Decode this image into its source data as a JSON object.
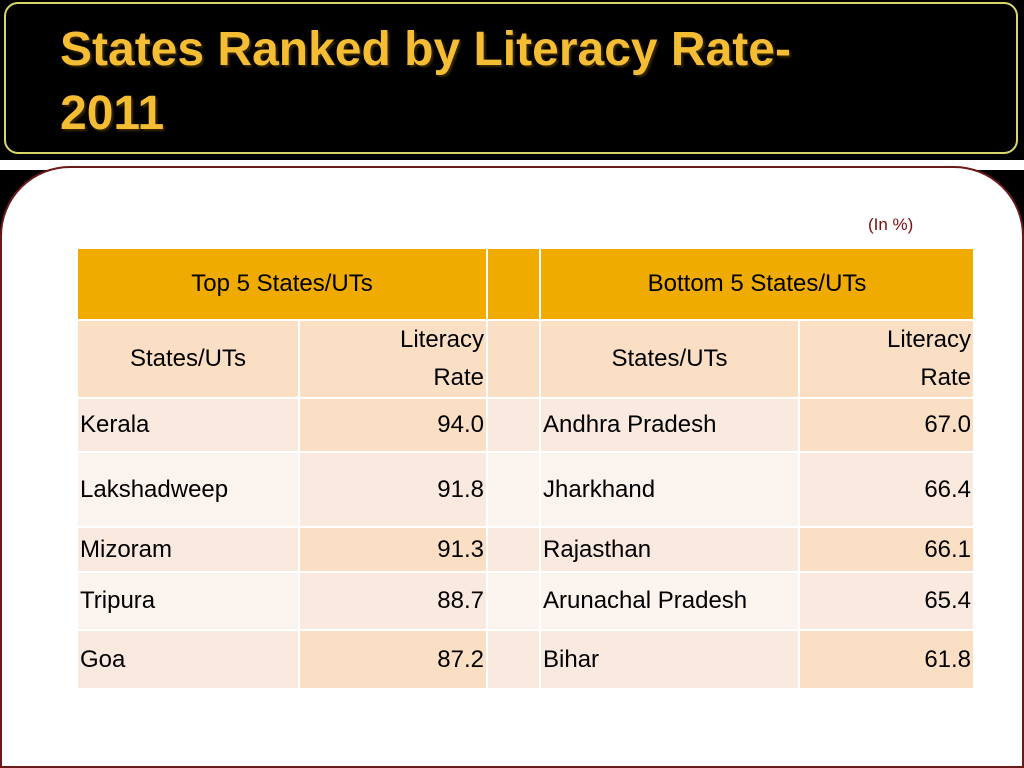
{
  "title": {
    "line1": "States Ranked by Literacy Rate-",
    "line2": "2011"
  },
  "unit_note": "(In %)",
  "table": {
    "group_headers": {
      "top": "Top 5 States/UTs",
      "bottom": "Bottom 5 States/UTs"
    },
    "sub_headers": {
      "name": "States/UTs",
      "rate_line1": "Literacy",
      "rate_line2": "Rate"
    },
    "rows": [
      {
        "top_name": "Kerala",
        "top_rate": "94.0",
        "bottom_name": "Andhra Pradesh",
        "bottom_rate": "67.0"
      },
      {
        "top_name": "Lakshadweep",
        "top_rate": "91.8",
        "bottom_name": "Jharkhand",
        "bottom_rate": "66.4"
      },
      {
        "top_name": "Mizoram",
        "top_rate": "91.3",
        "bottom_name": "Rajasthan",
        "bottom_rate": "66.1"
      },
      {
        "top_name": "Tripura",
        "top_rate": "88.7",
        "bottom_name": "Arunachal Pradesh",
        "bottom_rate": "65.4"
      },
      {
        "top_name": "Goa",
        "top_rate": "87.2",
        "bottom_name": "Bihar",
        "bottom_rate": "61.8"
      }
    ]
  },
  "colors": {
    "title_text": "#f4bd33",
    "header_fill": "#f0ab00",
    "subheader_fill": "#fbdfc5",
    "panel_border": "#6b1a1a"
  }
}
